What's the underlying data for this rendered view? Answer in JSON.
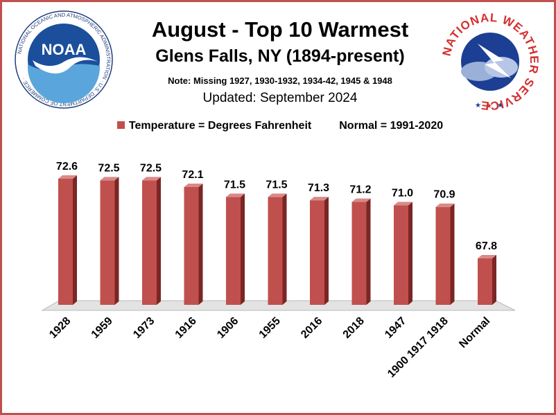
{
  "title": "August - Top 10 Warmest",
  "subtitle": "Glens Falls, NY (1894-present)",
  "note": "Note: Missing 1927, 1930-1932, 1934-42, 1945 & 1948",
  "updated": "Updated:  September 2024",
  "legend": {
    "series_label": "Temperature = Degrees Fahrenheit",
    "normal_label": "Normal = 1991-2020"
  },
  "logos": {
    "noaa_text": "NOAA",
    "noaa_ring": "NATIONAL OCEANIC AND ATMOSPHERIC ADMINISTRATION · U.S. DEPARTMENT OF COMMERCE ·",
    "nws_ring": "NATIONAL WEATHER SERVICE"
  },
  "colors": {
    "bar_front": "#c0504d",
    "bar_side": "#7b2624",
    "bar_top": "#d98a88",
    "border": "#c0504d"
  },
  "chart_data": {
    "type": "bar",
    "categories": [
      "1928",
      "1959",
      "1973",
      "1916",
      "1906",
      "1955",
      "2016",
      "2018",
      "1947",
      "1900 1917 1918",
      "Normal"
    ],
    "values": [
      72.6,
      72.5,
      72.5,
      72.1,
      71.5,
      71.5,
      71.3,
      71.2,
      71.0,
      70.9,
      67.8
    ],
    "value_labels": [
      "72.6",
      "72.5",
      "72.5",
      "72.1",
      "71.5",
      "71.5",
      "71.3",
      "71.2",
      "71.0",
      "70.9",
      "67.8"
    ],
    "ylim": [
      65,
      73
    ],
    "grid": false
  }
}
